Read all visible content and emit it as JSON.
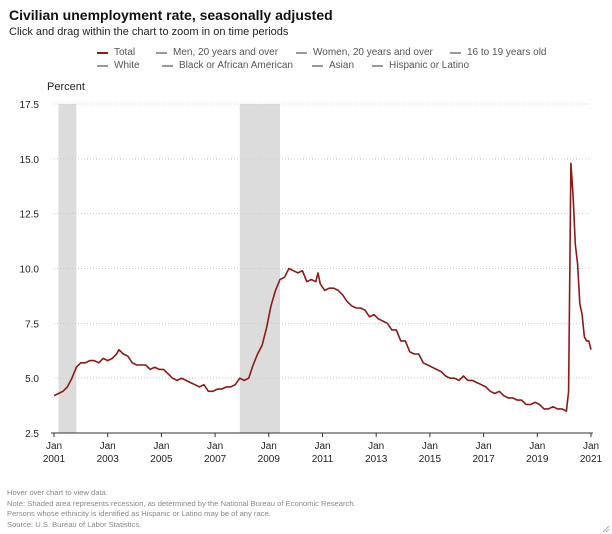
{
  "header": {
    "title": "Civilian unemployment rate, seasonally adjusted",
    "subtitle": "Click and drag within the chart to zoom in on time periods"
  },
  "legend": {
    "items": [
      {
        "label": "Total",
        "color": "#8b1a1a",
        "active": true
      },
      {
        "label": "Men, 20 years and over",
        "color": "#999999",
        "active": false
      },
      {
        "label": "Women, 20 years and over",
        "color": "#999999",
        "active": false
      },
      {
        "label": "16 to 19 years old",
        "color": "#999999",
        "active": false
      },
      {
        "label": "White",
        "color": "#999999",
        "active": false
      },
      {
        "label": "Black or African American",
        "color": "#999999",
        "active": false
      },
      {
        "label": "Asian",
        "color": "#999999",
        "active": false
      },
      {
        "label": "Hispanic or Latino",
        "color": "#999999",
        "active": false
      }
    ]
  },
  "footnotes": [
    "Hover over chart to view data.",
    "Note: Shaded area represents recession, as determined by the National Bureau of Economic Research.",
    "Persons whose ethnicity is identified as Hispanic or Latino may be of any race.",
    "Source: U.S. Bureau of Labor Statistics."
  ],
  "chart_data": {
    "type": "line",
    "ylabel": "Percent",
    "xlabel": "",
    "ylim": [
      2.5,
      17.5
    ],
    "yticks": [
      2.5,
      5.0,
      7.5,
      10.0,
      12.5,
      15.0,
      17.5
    ],
    "xlim": [
      "2001-01",
      "2021-01"
    ],
    "xticks": [
      {
        "month": "Jan",
        "year": "2001",
        "date": "2001-01"
      },
      {
        "month": "Jan",
        "year": "2003",
        "date": "2003-01"
      },
      {
        "month": "Jan",
        "year": "2005",
        "date": "2005-01"
      },
      {
        "month": "Jan",
        "year": "2007",
        "date": "2007-01"
      },
      {
        "month": "Jan",
        "year": "2009",
        "date": "2009-01"
      },
      {
        "month": "Jan",
        "year": "2011",
        "date": "2011-01"
      },
      {
        "month": "Jan",
        "year": "2013",
        "date": "2013-01"
      },
      {
        "month": "Jan",
        "year": "2015",
        "date": "2015-01"
      },
      {
        "month": "Jan",
        "year": "2017",
        "date": "2017-01"
      },
      {
        "month": "Jan",
        "year": "2019",
        "date": "2019-01"
      },
      {
        "month": "Jan",
        "year": "2021",
        "date": "2021-01"
      }
    ],
    "grid": true,
    "legend_position": "top",
    "recessions": [
      {
        "start": "2001-03",
        "end": "2001-11"
      },
      {
        "start": "2007-12",
        "end": "2009-06"
      }
    ],
    "series": [
      {
        "name": "Total",
        "color": "#8b1a1a",
        "points": [
          [
            "2001-01",
            4.2
          ],
          [
            "2001-03",
            4.3
          ],
          [
            "2001-05",
            4.4
          ],
          [
            "2001-07",
            4.6
          ],
          [
            "2001-09",
            5.0
          ],
          [
            "2001-11",
            5.5
          ],
          [
            "2002-01",
            5.7
          ],
          [
            "2002-03",
            5.7
          ],
          [
            "2002-05",
            5.8
          ],
          [
            "2002-07",
            5.8
          ],
          [
            "2002-09",
            5.7
          ],
          [
            "2002-11",
            5.9
          ],
          [
            "2003-01",
            5.8
          ],
          [
            "2003-03",
            5.9
          ],
          [
            "2003-05",
            6.1
          ],
          [
            "2003-06",
            6.3
          ],
          [
            "2003-08",
            6.1
          ],
          [
            "2003-10",
            6.0
          ],
          [
            "2003-12",
            5.7
          ],
          [
            "2004-02",
            5.6
          ],
          [
            "2004-04",
            5.6
          ],
          [
            "2004-06",
            5.6
          ],
          [
            "2004-08",
            5.4
          ],
          [
            "2004-10",
            5.5
          ],
          [
            "2004-12",
            5.4
          ],
          [
            "2005-02",
            5.4
          ],
          [
            "2005-04",
            5.2
          ],
          [
            "2005-06",
            5.0
          ],
          [
            "2005-08",
            4.9
          ],
          [
            "2005-10",
            5.0
          ],
          [
            "2005-12",
            4.9
          ],
          [
            "2006-02",
            4.8
          ],
          [
            "2006-04",
            4.7
          ],
          [
            "2006-06",
            4.6
          ],
          [
            "2006-08",
            4.7
          ],
          [
            "2006-10",
            4.4
          ],
          [
            "2006-12",
            4.4
          ],
          [
            "2007-02",
            4.5
          ],
          [
            "2007-04",
            4.5
          ],
          [
            "2007-06",
            4.6
          ],
          [
            "2007-08",
            4.6
          ],
          [
            "2007-10",
            4.7
          ],
          [
            "2007-12",
            5.0
          ],
          [
            "2008-02",
            4.9
          ],
          [
            "2008-04",
            5.0
          ],
          [
            "2008-06",
            5.6
          ],
          [
            "2008-08",
            6.1
          ],
          [
            "2008-10",
            6.5
          ],
          [
            "2008-12",
            7.3
          ],
          [
            "2009-02",
            8.3
          ],
          [
            "2009-04",
            9.0
          ],
          [
            "2009-06",
            9.5
          ],
          [
            "2009-08",
            9.6
          ],
          [
            "2009-10",
            10.0
          ],
          [
            "2009-12",
            9.9
          ],
          [
            "2010-02",
            9.8
          ],
          [
            "2010-04",
            9.9
          ],
          [
            "2010-06",
            9.4
          ],
          [
            "2010-08",
            9.5
          ],
          [
            "2010-10",
            9.4
          ],
          [
            "2010-11",
            9.8
          ],
          [
            "2010-12",
            9.3
          ],
          [
            "2011-02",
            9.0
          ],
          [
            "2011-04",
            9.1
          ],
          [
            "2011-06",
            9.1
          ],
          [
            "2011-08",
            9.0
          ],
          [
            "2011-10",
            8.8
          ],
          [
            "2011-12",
            8.5
          ],
          [
            "2012-02",
            8.3
          ],
          [
            "2012-04",
            8.2
          ],
          [
            "2012-06",
            8.2
          ],
          [
            "2012-08",
            8.1
          ],
          [
            "2012-10",
            7.8
          ],
          [
            "2012-12",
            7.9
          ],
          [
            "2013-02",
            7.7
          ],
          [
            "2013-04",
            7.6
          ],
          [
            "2013-06",
            7.5
          ],
          [
            "2013-08",
            7.2
          ],
          [
            "2013-10",
            7.2
          ],
          [
            "2013-12",
            6.7
          ],
          [
            "2014-02",
            6.7
          ],
          [
            "2014-04",
            6.2
          ],
          [
            "2014-06",
            6.1
          ],
          [
            "2014-08",
            6.1
          ],
          [
            "2014-10",
            5.7
          ],
          [
            "2014-12",
            5.6
          ],
          [
            "2015-02",
            5.5
          ],
          [
            "2015-04",
            5.4
          ],
          [
            "2015-06",
            5.3
          ],
          [
            "2015-08",
            5.1
          ],
          [
            "2015-10",
            5.0
          ],
          [
            "2015-12",
            5.0
          ],
          [
            "2016-02",
            4.9
          ],
          [
            "2016-04",
            5.1
          ],
          [
            "2016-06",
            4.9
          ],
          [
            "2016-08",
            4.9
          ],
          [
            "2016-10",
            4.8
          ],
          [
            "2016-12",
            4.7
          ],
          [
            "2017-02",
            4.6
          ],
          [
            "2017-04",
            4.4
          ],
          [
            "2017-06",
            4.3
          ],
          [
            "2017-08",
            4.4
          ],
          [
            "2017-10",
            4.2
          ],
          [
            "2017-12",
            4.1
          ],
          [
            "2018-02",
            4.1
          ],
          [
            "2018-04",
            4.0
          ],
          [
            "2018-06",
            4.0
          ],
          [
            "2018-08",
            3.8
          ],
          [
            "2018-10",
            3.8
          ],
          [
            "2018-12",
            3.9
          ],
          [
            "2019-02",
            3.8
          ],
          [
            "2019-04",
            3.6
          ],
          [
            "2019-06",
            3.6
          ],
          [
            "2019-08",
            3.7
          ],
          [
            "2019-10",
            3.6
          ],
          [
            "2019-12",
            3.6
          ],
          [
            "2020-02",
            3.5
          ],
          [
            "2020-03",
            4.4
          ],
          [
            "2020-04",
            14.8
          ],
          [
            "2020-05",
            13.3
          ],
          [
            "2020-06",
            11.1
          ],
          [
            "2020-07",
            10.2
          ],
          [
            "2020-08",
            8.4
          ],
          [
            "2020-09",
            7.9
          ],
          [
            "2020-10",
            6.9
          ],
          [
            "2020-11",
            6.7
          ],
          [
            "2020-12",
            6.7
          ],
          [
            "2021-01",
            6.3
          ]
        ]
      }
    ]
  }
}
